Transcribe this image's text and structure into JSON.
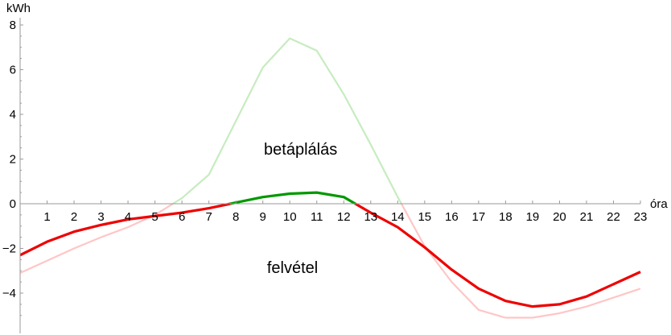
{
  "chart_data": {
    "type": "line",
    "xlabel": "óra",
    "ylabel": "kWh",
    "xlim": [
      0,
      23
    ],
    "ylim": [
      -5.8,
      8
    ],
    "x_ticks": [
      1,
      2,
      3,
      4,
      5,
      6,
      7,
      8,
      9,
      10,
      11,
      12,
      13,
      14,
      15,
      16,
      17,
      18,
      19,
      20,
      21,
      22,
      23
    ],
    "y_ticks": [
      -4,
      -2,
      0,
      2,
      4,
      6,
      8
    ],
    "y_tick_labels": [
      "−4",
      "−2",
      "0",
      "2",
      "4",
      "6",
      "8"
    ],
    "annotations": [
      {
        "text": "betáplálás",
        "x": 10.4,
        "y": 2.2
      },
      {
        "text": "felvétel",
        "x": 10.1,
        "y": -3.1
      }
    ],
    "series": [
      {
        "color": "#c6ecbf",
        "color_negative": "#ffc6c6",
        "x": [
          0,
          1,
          2,
          3,
          4,
          5,
          6,
          7,
          8,
          9,
          10,
          11,
          12,
          13,
          14,
          15,
          16,
          17,
          18,
          19,
          20,
          21,
          22,
          23
        ],
        "values": [
          -3.1,
          -2.55,
          -2.0,
          -1.5,
          -1.05,
          -0.5,
          0.25,
          1.3,
          3.7,
          6.1,
          7.4,
          6.85,
          4.9,
          2.65,
          0.3,
          -1.9,
          -3.5,
          -4.75,
          -5.1,
          -5.1,
          -4.9,
          -4.6,
          -4.2,
          -3.8
        ]
      },
      {
        "color": "#009900",
        "color_negative": "#ee0000",
        "x": [
          0,
          1,
          2,
          3,
          4,
          5,
          6,
          7,
          8,
          9,
          10,
          11,
          12,
          13,
          14,
          15,
          16,
          17,
          18,
          19,
          20,
          21,
          22,
          23
        ],
        "values": [
          -2.3,
          -1.7,
          -1.25,
          -0.95,
          -0.7,
          -0.55,
          -0.4,
          -0.2,
          0.05,
          0.3,
          0.45,
          0.5,
          0.3,
          -0.4,
          -1.05,
          -1.95,
          -2.95,
          -3.8,
          -4.35,
          -4.6,
          -4.5,
          -4.15,
          -3.6,
          -3.05
        ]
      }
    ]
  }
}
